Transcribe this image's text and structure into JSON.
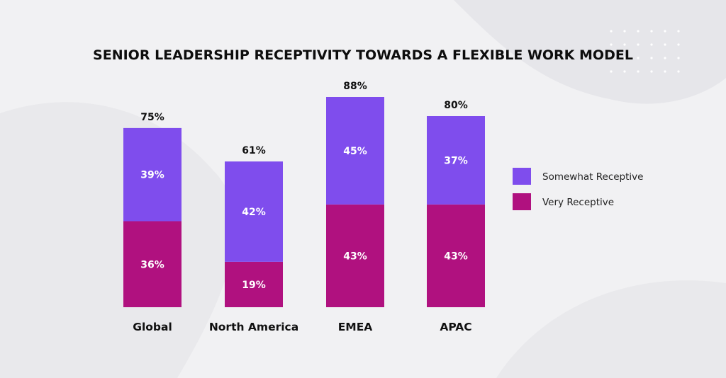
{
  "chart_data": {
    "type": "bar",
    "stacked": true,
    "title": "SENIOR LEADERSHIP RECEPTIVITY TOWARDS A FLEXIBLE WORK MODEL",
    "categories": [
      "Global",
      "North America",
      "EMEA",
      "APAC"
    ],
    "totals": [
      "75%",
      "61%",
      "88%",
      "80%"
    ],
    "series": [
      {
        "name": "Very Receptive",
        "values": [
          36,
          19,
          43,
          43
        ],
        "labels": [
          "36%",
          "19%",
          "43%",
          "43%"
        ],
        "color": "#b0117f"
      },
      {
        "name": "Somewhat Receptive",
        "values": [
          39,
          42,
          45,
          37
        ],
        "labels": [
          "39%",
          "42%",
          "45%",
          "37%"
        ],
        "color": "#7f4ded"
      }
    ],
    "legend_order": [
      "Somewhat Receptive",
      "Very Receptive"
    ],
    "legend": "right",
    "grid": false,
    "ylim": [
      0,
      88
    ],
    "xlabel": "",
    "ylabel": ""
  }
}
